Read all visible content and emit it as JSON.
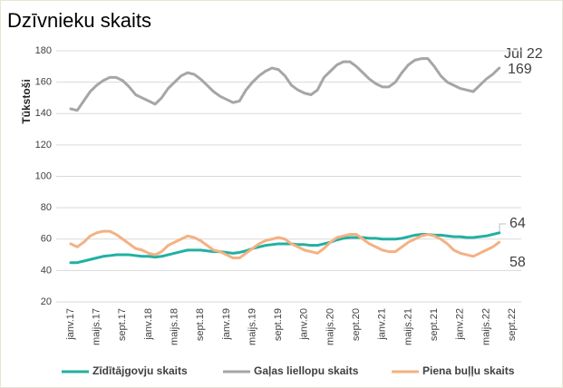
{
  "chart_data": {
    "type": "line",
    "title": "Dzīvnieku skaits",
    "ylabel": "Tūkstoši",
    "categories": [
      "janv.17",
      null,
      null,
      null,
      "maijs.17",
      null,
      null,
      null,
      "sept.17",
      null,
      null,
      null,
      "janv.18",
      null,
      null,
      null,
      "maijs.18",
      null,
      null,
      null,
      "sept.18",
      null,
      null,
      null,
      "janv.19",
      null,
      null,
      null,
      "maijs.19",
      null,
      null,
      null,
      "sept.19",
      null,
      null,
      null,
      "janv.20",
      null,
      null,
      null,
      "maijs.20",
      null,
      null,
      null,
      "sept.20",
      null,
      null,
      null,
      "janv.21",
      null,
      null,
      null,
      "maijs.21",
      null,
      null,
      null,
      "sept.21",
      null,
      null,
      null,
      "janv.22",
      null,
      null,
      null,
      "maijs.22",
      null,
      null,
      null,
      "sept.22"
    ],
    "series": [
      {
        "name": "Zīdītājgovju skaits",
        "color": "#22b0a2",
        "values": [
          45,
          45,
          46,
          47,
          48,
          49,
          49.5,
          50,
          50,
          50,
          49.5,
          49,
          49,
          48.5,
          49,
          50,
          51,
          52,
          53,
          53,
          53,
          52.5,
          52,
          52,
          51.5,
          51,
          51.5,
          52.5,
          54,
          55,
          56,
          56.5,
          57,
          57,
          57,
          56.5,
          56.5,
          56,
          56,
          57,
          58,
          59.5,
          60.5,
          61,
          61,
          61,
          60.5,
          60.5,
          60,
          60,
          60,
          60.5,
          61.5,
          62.5,
          63,
          63,
          62.5,
          62.5,
          62,
          61.5,
          61.5,
          61,
          61,
          61.5,
          62,
          63,
          64,
          null,
          null
        ]
      },
      {
        "name": "Gaļas liellopu skaits",
        "color": "#a6a6a6",
        "values": [
          143,
          142,
          148,
          154,
          158,
          161,
          163,
          163,
          161,
          157,
          152,
          150,
          148,
          146,
          150,
          156,
          160,
          164,
          166,
          165,
          162,
          158,
          154,
          151,
          149,
          147,
          148,
          155,
          160,
          164,
          167,
          169,
          168,
          164,
          158,
          155,
          153,
          152,
          155,
          163,
          167,
          171,
          173,
          173,
          170,
          166,
          162,
          159,
          157,
          157,
          160,
          166,
          171,
          174,
          175,
          175,
          170,
          164,
          160,
          158,
          156,
          155,
          154,
          158,
          162,
          165,
          169,
          null,
          null
        ]
      },
      {
        "name": "Piena buļļu skaits",
        "color": "#f4b183",
        "values": [
          57,
          55,
          58,
          62,
          64,
          65,
          65,
          63,
          60,
          57,
          54,
          53,
          51,
          50,
          52,
          56,
          58,
          60,
          62,
          61,
          59,
          56,
          53,
          52,
          50,
          48,
          48,
          51,
          54,
          57,
          59,
          60,
          61,
          60,
          57,
          55,
          53,
          52,
          51,
          54,
          58,
          61,
          62,
          63,
          63,
          60,
          57,
          55,
          53,
          52,
          52,
          55,
          58,
          60,
          62,
          63,
          62,
          60,
          57,
          53,
          51,
          50,
          49,
          51,
          53,
          55,
          58,
          null,
          null
        ]
      }
    ],
    "annotations": [
      "Jūl 22",
      "169",
      "64",
      "58"
    ],
    "ylim": [
      20,
      180
    ],
    "yticks": [
      20,
      40,
      60,
      80,
      100,
      120,
      140,
      160,
      180
    ],
    "grid": true
  }
}
